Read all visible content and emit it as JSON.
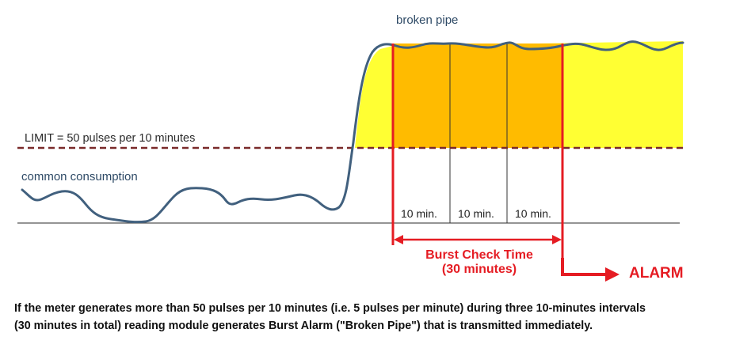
{
  "labels": {
    "broken_pipe": "broken pipe",
    "limit": "LIMIT = 50 pulses per 10 minutes",
    "common_consumption": "common consumption",
    "interval_1": "10 min.",
    "interval_2": "10 min.",
    "interval_3": "10 min.",
    "burst_check_line1": "Burst Check Time",
    "burst_check_line2": "(30 minutes)",
    "alarm": "ALARM"
  },
  "caption": {
    "line1": "If the meter generates more than 50 pulses per 10 minutes (i.e. 5 pulses per minute) during three 10-minutes intervals",
    "line2": "(30 minutes in total) reading module generates Burst Alarm (\"Broken Pipe\") that is transmitted immediately."
  },
  "colors": {
    "consumption_line": "#41607e",
    "limit_line": "#7a2a2a",
    "high_fill": "#ffff33",
    "check_fill": "#ffbb00",
    "alarm_red": "#e51c23",
    "baseline": "#555555"
  }
}
